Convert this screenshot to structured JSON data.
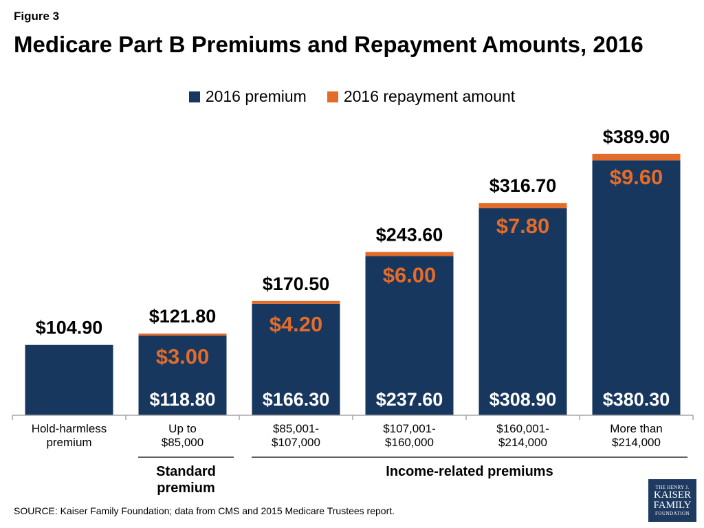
{
  "figure_label": "Figure 3",
  "title": "Medicare Part B Premiums and Repayment Amounts, 2016",
  "colors": {
    "premium": "#17375e",
    "repayment": "#e46c2a",
    "axis": "#a6a6a6"
  },
  "chart_data": {
    "type": "bar",
    "stacked": true,
    "title": "Medicare Part B Premiums and Repayment Amounts, 2016",
    "categories": [
      "Hold-harmless\npremium",
      "Up to\n$85,000",
      "$85,001-\n$107,000",
      "$107,001-\n$160,000",
      "$160,001-\n$214,000",
      "More than\n$214,000"
    ],
    "series": [
      {
        "name": "2016 premium",
        "values": [
          104.9,
          118.8,
          166.3,
          237.6,
          308.9,
          380.3
        ]
      },
      {
        "name": "2016 repayment amount",
        "values": [
          0,
          3.0,
          4.2,
          6.0,
          7.8,
          9.6
        ]
      }
    ],
    "totals": [
      104.9,
      121.8,
      170.5,
      243.6,
      316.7,
      389.9
    ],
    "total_labels": [
      "$104.90",
      "$121.80",
      "$170.50",
      "$243.60",
      "$316.70",
      "$389.90"
    ],
    "premium_labels": [
      "",
      "$118.80",
      "$166.30",
      "$237.60",
      "$308.90",
      "$380.30"
    ],
    "repayment_labels": [
      "",
      "$3.00",
      "$4.20",
      "$6.00",
      "$7.80",
      "$9.60"
    ],
    "ylim": [
      0,
      400
    ],
    "legend_position": "top-center",
    "grid": false,
    "groups": [
      {
        "label": "Standard\npremium",
        "from": 1,
        "to": 1
      },
      {
        "label": "Income-related premiums",
        "from": 2,
        "to": 5
      }
    ]
  },
  "source": "SOURCE: Kaiser Family Foundation; data from CMS and 2015 Medicare Trustees report.",
  "logo": {
    "line1": "THE HENRY J.",
    "line2": "KAISER",
    "line3": "FAMILY",
    "line4": "FOUNDATION"
  }
}
